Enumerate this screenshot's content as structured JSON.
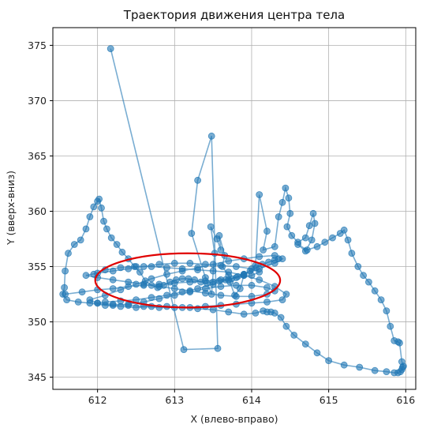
{
  "chart_data": {
    "type": "scatter",
    "title": "Траектория движения центра тела",
    "xlabel": "X (влево-вправо)",
    "ylabel": "Y (вверх-вниз)",
    "xlim": [
      611.42,
      616.13
    ],
    "ylim": [
      343.9,
      376.6
    ],
    "xticks": [
      612,
      613,
      614,
      615,
      616
    ],
    "yticks": [
      345,
      350,
      355,
      360,
      365,
      370,
      375
    ],
    "grid": true,
    "series": [
      {
        "color": "#1f77b4",
        "style": "line-with-markers",
        "x": [
          612.17,
          613.12,
          613.56,
          613.48,
          613.3,
          613.22,
          613.4,
          613.48,
          613.52,
          613.47,
          613.55,
          613.6,
          613.58,
          613.65,
          613.62,
          613.7,
          613.72,
          613.78,
          613.85,
          613.9,
          614.05,
          614.1,
          614.2,
          614.15,
          614.3,
          614.35,
          614.4,
          614.44,
          614.48,
          614.5,
          614.46,
          614.52,
          614.6,
          614.7,
          614.75,
          614.8,
          614.82,
          614.78,
          614.7,
          614.6,
          614.72,
          614.85,
          614.95,
          615.05,
          615.15,
          615.2,
          615.25,
          615.3,
          615.38,
          615.45,
          615.52,
          615.6,
          615.68,
          615.75,
          615.8,
          615.85,
          615.9,
          615.92,
          615.95,
          615.97,
          615.96,
          615.95,
          615.93,
          615.9,
          615.85,
          615.75,
          615.6,
          615.4,
          615.2,
          615.0,
          614.85,
          614.7,
          614.55,
          614.45,
          614.38,
          614.3,
          614.25,
          614.2,
          614.15,
          614.05,
          613.9,
          613.7,
          613.5,
          613.3,
          613.1,
          612.9,
          612.7,
          612.5,
          612.3,
          612.1,
          611.9,
          611.75,
          611.6,
          611.55,
          611.57,
          611.58,
          611.62,
          611.7,
          611.78,
          611.85,
          611.9,
          611.95,
          612.0,
          612.02,
          612.05,
          612.08,
          612.12,
          612.18,
          612.25,
          612.32,
          612.4,
          612.48,
          612.55,
          612.62,
          612.7,
          612.78,
          612.86,
          612.94,
          613.02,
          613.1,
          613.18,
          613.26,
          613.34,
          613.42,
          613.5,
          613.58,
          613.66,
          613.74,
          613.82,
          613.9,
          613.98,
          614.06,
          614.14,
          614.22,
          614.3,
          614.35
        ],
        "y": [
          374.7,
          347.5,
          347.6,
          366.8,
          362.8,
          358.0,
          354.0,
          352.5,
          356.2,
          358.6,
          357.5,
          356.5,
          357.8,
          356.0,
          355.0,
          354.2,
          353.6,
          352.4,
          353.0,
          354.2,
          355.1,
          361.5,
          358.2,
          356.5,
          356.8,
          359.5,
          360.8,
          362.1,
          361.2,
          359.8,
          358.6,
          357.8,
          357.2,
          357.6,
          358.7,
          359.8,
          358.9,
          357.4,
          356.4,
          357.0,
          356.5,
          356.8,
          357.2,
          357.6,
          358.0,
          358.3,
          357.4,
          356.2,
          355.0,
          354.2,
          353.6,
          352.8,
          352.0,
          351.0,
          349.6,
          348.3,
          348.2,
          348.1,
          346.4,
          346.0,
          345.9,
          345.7,
          345.5,
          345.4,
          345.4,
          345.5,
          345.6,
          345.9,
          346.1,
          346.5,
          347.2,
          348.0,
          348.8,
          349.6,
          350.4,
          350.8,
          350.9,
          350.9,
          351.0,
          350.8,
          350.7,
          350.9,
          351.1,
          351.2,
          351.3,
          351.4,
          351.4,
          351.3,
          351.4,
          351.5,
          351.7,
          351.8,
          352.0,
          352.5,
          353.1,
          354.6,
          356.2,
          357.0,
          357.4,
          358.4,
          359.5,
          360.4,
          360.9,
          361.1,
          360.3,
          359.1,
          358.4,
          357.6,
          357.0,
          356.3,
          355.7,
          355.0,
          354.5,
          353.7,
          353.3,
          353.1,
          353.3,
          353.6,
          353.8,
          353.9,
          353.9,
          353.8,
          353.6,
          353.5,
          353.6,
          353.7,
          353.8,
          353.9,
          354.1,
          354.3,
          354.6,
          354.9,
          355.2,
          355.4,
          355.6,
          355.7
        ]
      },
      {
        "color": "#1f77b4",
        "style": "line-with-markers",
        "x": [
          611.58,
          611.8,
          612.0,
          612.2,
          612.4,
          612.6,
          612.8,
          613.0,
          613.2,
          613.4,
          613.6,
          613.8,
          614.0,
          614.1,
          614.0,
          613.8,
          613.6,
          613.4,
          613.2,
          613.0,
          612.8,
          612.6,
          612.4,
          612.2,
          612.0,
          611.85,
          612.0,
          612.2,
          612.4,
          612.6,
          612.8,
          613.0,
          613.2,
          613.4,
          613.6,
          613.8,
          614.0,
          614.2,
          614.3,
          614.2,
          614.0,
          613.8,
          613.6,
          613.4,
          613.2,
          613.0,
          612.8,
          612.6,
          612.4,
          612.2,
          612.0,
          611.9,
          612.1,
          612.3,
          612.5,
          612.7,
          612.9,
          613.1,
          613.3,
          613.5,
          613.7,
          613.9,
          614.1,
          614.3,
          614.4,
          614.3,
          614.1,
          613.9,
          613.7,
          613.5,
          613.3,
          613.1,
          612.9,
          612.7,
          612.5,
          612.3,
          612.1,
          612.0,
          612.2,
          612.4,
          612.6,
          612.8,
          613.0,
          613.2,
          613.4,
          613.6,
          613.8,
          614.0,
          614.2,
          614.4,
          614.45,
          614.3,
          614.1,
          613.9,
          613.7,
          613.5,
          613.3,
          613.1,
          612.9,
          612.7,
          612.5,
          612.3,
          612.1,
          611.95
        ],
        "y": [
          352.5,
          352.7,
          352.9,
          353.0,
          353.2,
          353.3,
          353.4,
          353.5,
          353.6,
          353.7,
          353.8,
          354.0,
          354.2,
          354.5,
          354.8,
          355.0,
          355.1,
          355.2,
          355.3,
          355.3,
          355.2,
          355.0,
          354.8,
          354.6,
          354.4,
          354.2,
          354.0,
          353.8,
          353.6,
          353.4,
          353.2,
          353.0,
          352.8,
          352.6,
          352.4,
          352.3,
          352.3,
          352.5,
          352.8,
          353.1,
          353.3,
          353.3,
          353.2,
          353.0,
          352.7,
          352.4,
          352.1,
          351.8,
          351.6,
          351.5,
          351.7,
          352.0,
          352.4,
          352.9,
          353.4,
          353.9,
          354.3,
          354.6,
          354.9,
          355.2,
          355.5,
          355.7,
          355.9,
          356.0,
          355.7,
          355.3,
          354.8,
          354.3,
          353.8,
          353.4,
          353.0,
          352.7,
          352.4,
          352.2,
          352.0,
          351.9,
          351.8,
          351.7,
          351.6,
          351.5,
          351.4,
          351.3,
          351.3,
          351.3,
          351.4,
          351.5,
          351.6,
          351.7,
          351.8,
          352.0,
          352.5,
          353.2,
          353.8,
          354.2,
          354.5,
          354.6,
          354.7,
          354.8,
          354.9,
          355.0,
          355.0,
          354.9,
          354.7,
          354.3
        ]
      }
    ],
    "ellipse": {
      "color": "#e00000",
      "center": [
        613.17,
        353.75
      ],
      "radius_x": 1.2,
      "radius_y": 2.45
    }
  }
}
